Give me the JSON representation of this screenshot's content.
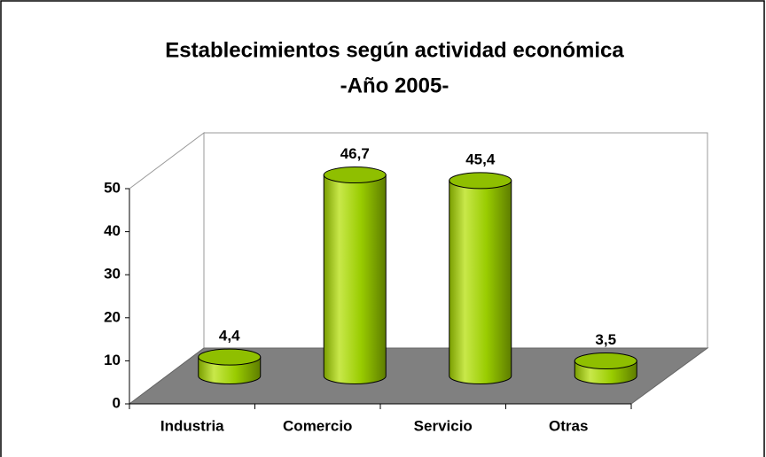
{
  "chart_data": {
    "type": "bar",
    "title": "Establecimientos según actividad económica",
    "subtitle": "-Año 2005-",
    "categories": [
      "Industria",
      "Comercio",
      "Servicio",
      "Otras"
    ],
    "values": [
      4.4,
      46.7,
      45.4,
      3.5
    ],
    "value_labels": [
      "4,4",
      "46,7",
      "45,4",
      "3,5"
    ],
    "color": "#99cc00",
    "ylim": [
      0,
      50
    ],
    "yticks": [
      0,
      10,
      20,
      30,
      40,
      50
    ],
    "grid": false
  }
}
